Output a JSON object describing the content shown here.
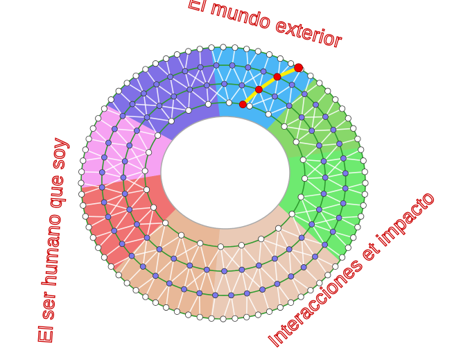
{
  "labels": {
    "top": "El mundo exterior",
    "left": "El ser humano que soy",
    "bottom_right": "Interacciones et impacto"
  },
  "colors": {
    "label_stroke": "#cc0000",
    "ring_line": "#2e9a2e",
    "mesh_line": "#ffffff",
    "inner_node": "#7b78ee",
    "outer_node": "#ffffff",
    "path_line": "#ffee00",
    "path_node": "#ee0000",
    "sectors": [
      "#4bb6f6",
      "#88d86a",
      "#6eea70",
      "#eacab6",
      "#e8b898",
      "#f07272",
      "#f6a2f2",
      "#8070e6"
    ]
  }
}
